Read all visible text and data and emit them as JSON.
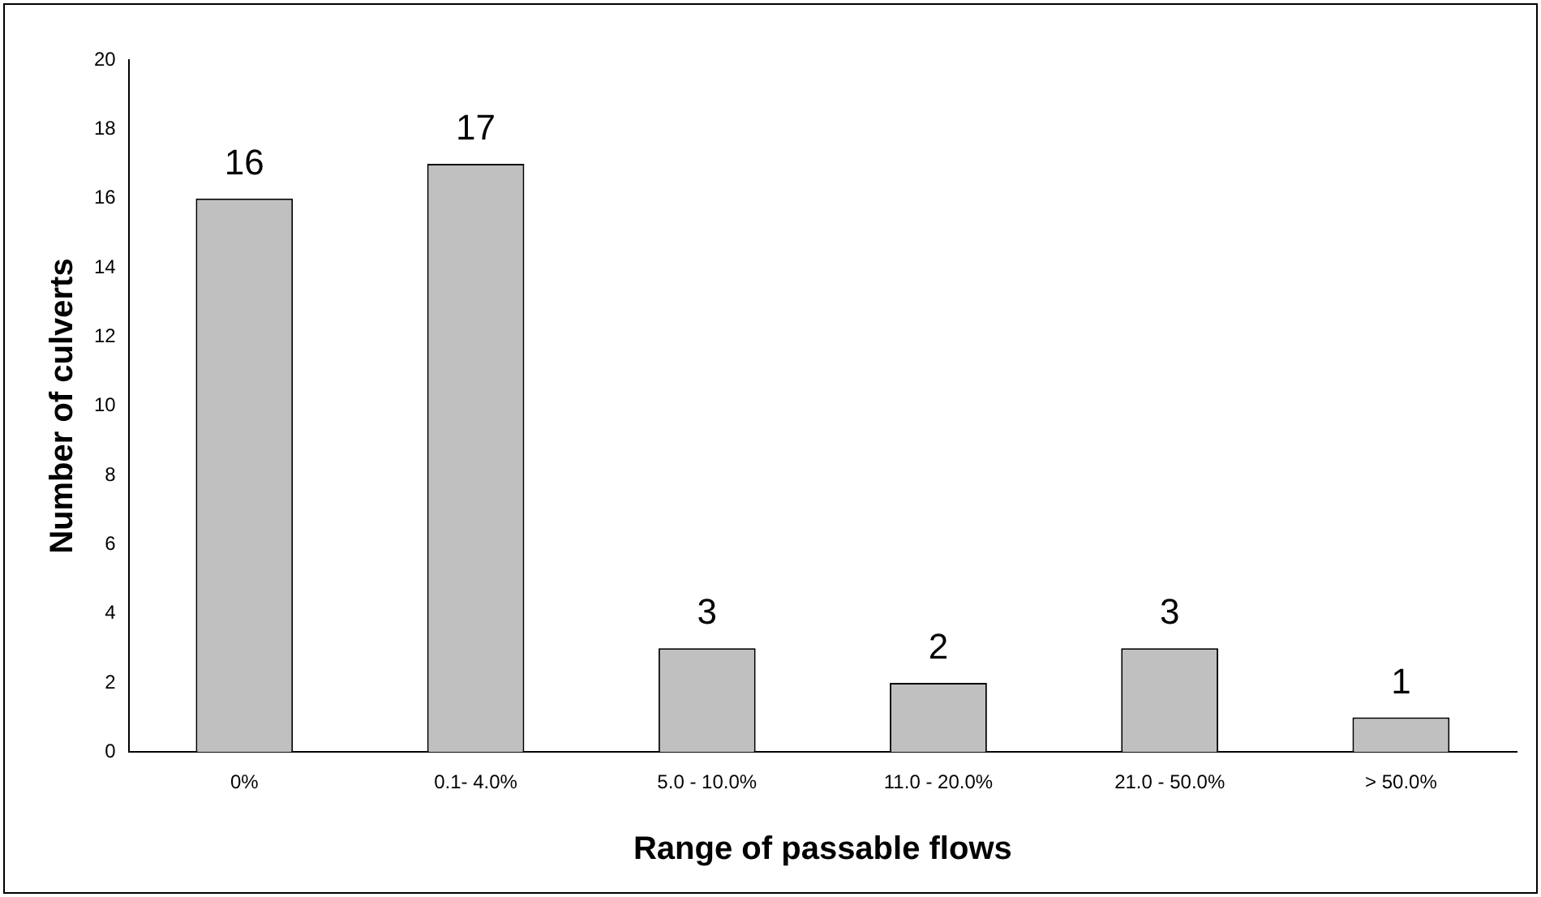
{
  "chart_data": {
    "type": "bar",
    "xlabel": "Range of passable flows",
    "ylabel": "Number of culverts",
    "categories": [
      "0%",
      "0.1- 4.0%",
      "5.0 - 10.0%",
      "11.0 - 20.0%",
      "21.0 - 50.0%",
      "> 50.0%"
    ],
    "values": [
      16,
      17,
      3,
      2,
      3,
      1
    ],
    "color": "#c0c0c0",
    "ylim": [
      0,
      20
    ],
    "yticks": [
      0,
      2,
      4,
      6,
      8,
      10,
      12,
      14,
      16,
      18,
      20
    ],
    "data_labels": true,
    "grid": false,
    "legend": false
  }
}
